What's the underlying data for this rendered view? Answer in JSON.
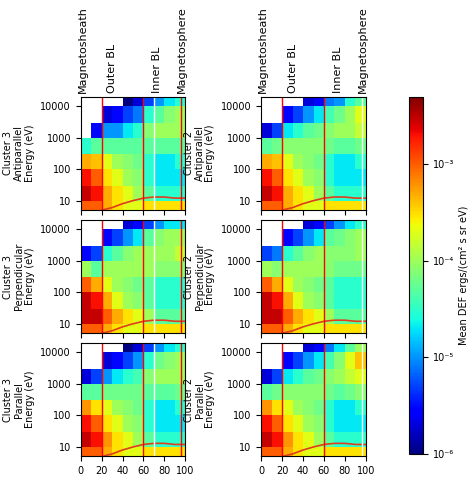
{
  "chart_data": [
    {
      "type": "heatmap",
      "column": 0,
      "row": 0,
      "ylabel": "Cluster 3\nAntiparallel\nEnergy (eV)",
      "xlim": [
        0,
        100
      ],
      "xticks": [
        0,
        20,
        40,
        60,
        80,
        100
      ],
      "ylim": [
        5,
        20000
      ],
      "yticks": [
        10,
        100,
        1000,
        10000
      ],
      "log": "y",
      "tick_labels": "y",
      "x_edges": [
        0,
        10,
        20,
        30,
        40,
        50,
        60,
        70,
        80,
        90,
        100
      ],
      "y_edges": [
        5,
        10,
        30,
        100,
        300,
        1000,
        3000,
        10000,
        20000
      ],
      "cells_by_x": [
        [
          0.001,
          0.003,
          0.002,
          0.0005,
          3e-05,
          null,
          null,
          null
        ],
        [
          0.001,
          0.002,
          0.001,
          0.0004,
          5e-05,
          3e-06,
          null,
          null
        ],
        [
          0.0005,
          0.0005,
          0.0003,
          0.0002,
          5e-05,
          1e-05,
          2e-06,
          null
        ],
        [
          0.0003,
          0.0003,
          0.0002,
          0.0001,
          5e-05,
          1e-05,
          3e-06,
          null
        ],
        [
          0.0002,
          0.0002,
          0.0001,
          8e-05,
          5e-05,
          2e-05,
          5e-06,
          1e-06
        ],
        [
          0.0002,
          0.0001,
          8e-05,
          6e-05,
          5e-05,
          3e-05,
          8e-06,
          2e-06
        ],
        [
          0.0003,
          5e-05,
          3e-05,
          3e-05,
          5e-05,
          8e-05,
          3e-05,
          5e-06
        ],
        [
          0.0003,
          3e-05,
          2e-05,
          2e-05,
          5e-05,
          0.0001,
          5e-05,
          1e-05
        ],
        [
          0.0003,
          3e-05,
          2e-05,
          2e-05,
          5e-05,
          0.0001,
          8e-05,
          2e-05
        ],
        [
          0.0003,
          3e-05,
          2e-05,
          3e-05,
          5e-05,
          0.0001,
          0.0001,
          3e-05
        ]
      ],
      "boundaries": [
        {
          "x": 20,
          "color": "red"
        },
        {
          "x": 60,
          "color": "red"
        },
        {
          "x": 70,
          "color": "white"
        },
        {
          "x": 96,
          "color": "red"
        }
      ],
      "series": [
        {
          "type": "line",
          "color": "#e03c1e",
          "x": [
            20,
            30,
            40,
            50,
            60,
            70,
            80,
            90,
            100
          ],
          "values": [
            5,
            6,
            8,
            10,
            12,
            13,
            13,
            12,
            12
          ]
        }
      ]
    },
    {
      "type": "heatmap",
      "column": 0,
      "row": 1,
      "ylabel": "Cluster 3\nPerpendicular\nEnergy (eV)",
      "xlim": [
        0,
        100
      ],
      "xticks": [
        0,
        20,
        40,
        60,
        80,
        100
      ],
      "ylim": [
        5,
        20000
      ],
      "yticks": [
        10,
        100,
        1000,
        10000
      ],
      "log": "y",
      "tick_labels": "y",
      "x_edges": [
        0,
        10,
        20,
        30,
        40,
        50,
        60,
        70,
        80,
        90,
        100
      ],
      "y_edges": [
        5,
        10,
        30,
        100,
        300,
        1000,
        3000,
        10000,
        20000
      ],
      "cells_by_x": [
        [
          0.001,
          0.003,
          0.003,
          0.001,
          0.0001,
          3e-06,
          null,
          null
        ],
        [
          0.001,
          0.003,
          0.002,
          0.0005,
          5e-05,
          5e-06,
          null,
          null
        ],
        [
          0.0005,
          0.001,
          0.0005,
          0.0002,
          0.0001,
          3e-05,
          3e-06,
          null
        ],
        [
          0.0003,
          0.0005,
          0.0002,
          0.0001,
          0.0001,
          5e-05,
          5e-06,
          null
        ],
        [
          0.0002,
          0.0003,
          0.0001,
          8e-05,
          0.0001,
          8e-05,
          1e-05,
          2e-06
        ],
        [
          0.0002,
          0.0002,
          8e-05,
          6e-05,
          0.0001,
          0.0001,
          2e-05,
          3e-06
        ],
        [
          0.0003,
          0.0001,
          5e-05,
          5e-05,
          0.0001,
          0.0001,
          5e-05,
          5e-06
        ],
        [
          0.0003,
          5e-05,
          3e-05,
          3e-05,
          8e-05,
          0.0001,
          8e-05,
          1e-05
        ],
        [
          0.0003,
          5e-05,
          3e-05,
          3e-05,
          8e-05,
          0.0001,
          0.0001,
          2e-05
        ],
        [
          0.0003,
          5e-05,
          3e-05,
          3e-05,
          8e-05,
          0.00015,
          0.0001,
          2e-05
        ]
      ],
      "boundaries": [
        {
          "x": 20,
          "color": "red"
        },
        {
          "x": 60,
          "color": "red"
        },
        {
          "x": 70,
          "color": "white"
        },
        {
          "x": 96,
          "color": "red"
        }
      ],
      "series": [
        {
          "type": "line",
          "color": "#e03c1e",
          "x": [
            20,
            30,
            40,
            50,
            60,
            70,
            80,
            90,
            100
          ],
          "values": [
            5,
            6,
            8,
            10,
            12,
            13,
            13,
            12,
            12
          ]
        }
      ]
    },
    {
      "type": "heatmap",
      "column": 0,
      "row": 2,
      "ylabel": "Cluster 3\nParallel\nEnergy (eV)",
      "xlim": [
        0,
        100
      ],
      "xticks": [
        0,
        20,
        40,
        60,
        80,
        100
      ],
      "ylim": [
        5,
        20000
      ],
      "yticks": [
        10,
        100,
        1000,
        10000
      ],
      "log": "y",
      "x_edges": [
        0,
        10,
        20,
        30,
        40,
        50,
        60,
        70,
        80,
        90,
        100
      ],
      "y_edges": [
        5,
        10,
        30,
        100,
        300,
        1000,
        3000,
        10000,
        20000
      ],
      "cells_by_x": [
        [
          0.001,
          0.003,
          0.002,
          0.0006,
          5e-05,
          2e-06,
          null,
          null
        ],
        [
          0.001,
          0.002,
          0.001,
          0.0003,
          5e-05,
          5e-06,
          null,
          null
        ],
        [
          0.0005,
          0.0006,
          0.0003,
          0.0002,
          6e-05,
          1e-05,
          2e-06,
          null
        ],
        [
          0.0003,
          0.0003,
          0.0002,
          0.0001,
          6e-05,
          2e-05,
          3e-06,
          null
        ],
        [
          0.0002,
          0.0002,
          0.0001,
          8e-05,
          6e-05,
          3e-05,
          5e-06,
          1e-06
        ],
        [
          0.0002,
          0.0001,
          8e-05,
          6e-05,
          6e-05,
          4e-05,
          1e-05,
          2e-06
        ],
        [
          0.0003,
          5e-05,
          3e-05,
          3e-05,
          5e-05,
          8e-05,
          3e-05,
          5e-06
        ],
        [
          0.0003,
          3e-05,
          2e-05,
          2e-05,
          5e-05,
          0.0001,
          6e-05,
          1e-05
        ],
        [
          0.0003,
          3e-05,
          2e-05,
          2e-05,
          5e-05,
          0.0001,
          8e-05,
          2e-05
        ],
        [
          0.0003,
          3e-05,
          2e-05,
          3e-05,
          6e-05,
          0.0001,
          0.0001,
          3e-05
        ]
      ],
      "boundaries": [
        {
          "x": 20,
          "color": "red"
        },
        {
          "x": 60,
          "color": "red"
        },
        {
          "x": 70,
          "color": "white"
        },
        {
          "x": 96,
          "color": "red"
        }
      ],
      "series": [
        {
          "type": "line",
          "color": "#e03c1e",
          "x": [
            20,
            30,
            40,
            50,
            60,
            70,
            80,
            90,
            100
          ],
          "values": [
            5,
            6,
            8,
            10,
            12,
            13,
            13,
            12,
            12
          ]
        }
      ]
    },
    {
      "type": "heatmap",
      "column": 1,
      "row": 0,
      "ylabel": "Cluster 2\nAntiparallel\nEnergy (eV)",
      "xlim": [
        0,
        100
      ],
      "xticks": [
        0,
        20,
        40,
        60,
        80,
        100
      ],
      "ylim": [
        5,
        20000
      ],
      "yticks": [
        10,
        100,
        1000,
        10000
      ],
      "log": "y",
      "tick_labels": "y",
      "x_edges": [
        0,
        10,
        20,
        30,
        40,
        50,
        60,
        70,
        80,
        90,
        100
      ],
      "y_edges": [
        5,
        10,
        30,
        100,
        300,
        1000,
        3000,
        10000,
        20000
      ],
      "cells_by_x": [
        [
          0.001,
          0.003,
          0.002,
          0.0005,
          5e-05,
          2e-06,
          null,
          null
        ],
        [
          0.001,
          0.002,
          0.001,
          0.0004,
          6e-05,
          5e-06,
          null,
          null
        ],
        [
          0.0005,
          0.0005,
          0.0003,
          0.0002,
          8e-05,
          2e-05,
          3e-06,
          null
        ],
        [
          0.0003,
          0.0003,
          0.0002,
          0.0001,
          8e-05,
          3e-05,
          5e-06,
          null
        ],
        [
          0.0002,
          0.0002,
          0.0001,
          8e-05,
          8e-05,
          5e-05,
          1e-05,
          2e-06
        ],
        [
          0.0002,
          0.0001,
          8e-05,
          6e-05,
          8e-05,
          6e-05,
          2e-05,
          3e-06
        ],
        [
          0.0003,
          5e-05,
          3e-05,
          3e-05,
          6e-05,
          8e-05,
          4e-05,
          8e-06
        ],
        [
          0.0003,
          3e-05,
          2e-05,
          2e-05,
          5e-05,
          0.0001,
          6e-05,
          1e-05
        ],
        [
          0.0003,
          3e-05,
          2e-05,
          2e-05,
          5e-05,
          0.0001,
          0.0001,
          3e-05
        ],
        [
          0.0003,
          3e-05,
          2e-05,
          3e-05,
          6e-05,
          0.00015,
          0.0002,
          5e-05
        ]
      ],
      "boundaries": [
        {
          "x": 20,
          "color": "red"
        },
        {
          "x": 60,
          "color": "red"
        },
        {
          "x": 96,
          "color": "white"
        }
      ],
      "series": [
        {
          "type": "line",
          "color": "#e03c1e",
          "x": [
            20,
            30,
            40,
            50,
            60,
            70,
            80,
            90,
            100
          ],
          "values": [
            5,
            6,
            8,
            10,
            12,
            13,
            13,
            12,
            12
          ]
        }
      ]
    },
    {
      "type": "heatmap",
      "column": 1,
      "row": 1,
      "ylabel": "Cluster 2\nPerpendicular\nEnergy (eV)",
      "xlim": [
        0,
        100
      ],
      "xticks": [
        0,
        20,
        40,
        60,
        80,
        100
      ],
      "ylim": [
        5,
        20000
      ],
      "yticks": [
        10,
        100,
        1000,
        10000
      ],
      "log": "y",
      "tick_labels": "y",
      "x_edges": [
        0,
        10,
        20,
        30,
        40,
        50,
        60,
        70,
        80,
        90,
        100
      ],
      "y_edges": [
        5,
        10,
        30,
        100,
        300,
        1000,
        3000,
        10000,
        20000
      ],
      "cells_by_x": [
        [
          0.001,
          0.003,
          0.003,
          0.001,
          0.0001,
          5e-06,
          null,
          null
        ],
        [
          0.001,
          0.003,
          0.002,
          0.0005,
          8e-05,
          8e-06,
          null,
          null
        ],
        [
          0.0005,
          0.001,
          0.0005,
          0.0002,
          0.0001,
          3e-05,
          3e-06,
          null
        ],
        [
          0.0003,
          0.0005,
          0.0002,
          0.0001,
          0.0001,
          5e-05,
          5e-06,
          null
        ],
        [
          0.0002,
          0.0003,
          0.0001,
          8e-05,
          0.0001,
          8e-05,
          1e-05,
          2e-06
        ],
        [
          0.0002,
          0.0002,
          8e-05,
          6e-05,
          0.0001,
          0.0001,
          2e-05,
          3e-06
        ],
        [
          0.0003,
          0.0001,
          5e-05,
          5e-05,
          8e-05,
          8e-05,
          5e-05,
          5e-06
        ],
        [
          0.0003,
          5e-05,
          3e-05,
          3e-05,
          6e-05,
          8e-05,
          6e-05,
          1e-05
        ],
        [
          0.0003,
          5e-05,
          3e-05,
          3e-05,
          6e-05,
          8e-05,
          8e-05,
          2e-05
        ],
        [
          0.0003,
          5e-05,
          3e-05,
          3e-05,
          6e-05,
          0.0001,
          0.0001,
          3e-05
        ]
      ],
      "boundaries": [
        {
          "x": 20,
          "color": "red"
        },
        {
          "x": 60,
          "color": "red"
        },
        {
          "x": 96,
          "color": "white"
        }
      ],
      "series": [
        {
          "type": "line",
          "color": "#e03c1e",
          "x": [
            20,
            30,
            40,
            50,
            60,
            70,
            80,
            90,
            100
          ],
          "values": [
            5,
            6,
            8,
            10,
            12,
            13,
            13,
            12,
            12
          ]
        }
      ]
    },
    {
      "type": "heatmap",
      "column": 1,
      "row": 2,
      "ylabel": "Cluster 2\nParallel\nEnergy (eV)",
      "xlim": [
        0,
        100
      ],
      "xticks": [
        0,
        20,
        40,
        60,
        80,
        100
      ],
      "ylim": [
        5,
        20000
      ],
      "yticks": [
        10,
        100,
        1000,
        10000
      ],
      "log": "y",
      "x_edges": [
        0,
        10,
        20,
        30,
        40,
        50,
        60,
        70,
        80,
        90,
        100
      ],
      "y_edges": [
        5,
        10,
        30,
        100,
        300,
        1000,
        3000,
        10000,
        20000
      ],
      "cells_by_x": [
        [
          0.001,
          0.003,
          0.002,
          0.0006,
          5e-05,
          2e-06,
          null,
          null
        ],
        [
          0.001,
          0.002,
          0.001,
          0.0003,
          6e-05,
          5e-06,
          null,
          null
        ],
        [
          0.0005,
          0.0006,
          0.0003,
          0.0002,
          8e-05,
          2e-05,
          3e-06,
          null
        ],
        [
          0.0003,
          0.0003,
          0.0002,
          0.0001,
          8e-05,
          3e-05,
          5e-06,
          null
        ],
        [
          0.0002,
          0.0002,
          0.0001,
          8e-05,
          8e-05,
          5e-05,
          1e-05,
          2e-06
        ],
        [
          0.0002,
          0.0001,
          8e-05,
          6e-05,
          8e-05,
          6e-05,
          2e-05,
          3e-06
        ],
        [
          0.0003,
          5e-05,
          3e-05,
          3e-05,
          6e-05,
          8e-05,
          4e-05,
          8e-06
        ],
        [
          0.0003,
          3e-05,
          2e-05,
          2e-05,
          5e-05,
          0.0001,
          8e-05,
          2e-05
        ],
        [
          0.0003,
          3e-05,
          2e-05,
          2e-05,
          6e-05,
          0.00015,
          0.0002,
          5e-05
        ],
        [
          0.0003,
          3e-05,
          2e-05,
          3e-05,
          8e-05,
          0.0002,
          0.0004,
          0.0001
        ]
      ],
      "boundaries": [
        {
          "x": 20,
          "color": "red"
        },
        {
          "x": 60,
          "color": "red"
        },
        {
          "x": 96,
          "color": "white"
        }
      ],
      "series": [
        {
          "type": "line",
          "color": "#e03c1e",
          "x": [
            20,
            30,
            40,
            50,
            60,
            70,
            80,
            90,
            100
          ],
          "values": [
            5,
            6,
            8,
            10,
            12,
            13,
            13,
            12,
            12
          ]
        }
      ]
    }
  ],
  "regions": [
    {
      "label": "Magnetosheath",
      "x": 2
    },
    {
      "label": "Outer BL",
      "x": 30
    },
    {
      "label": "Inner BL",
      "x": 73
    },
    {
      "label": "Magnetosphere",
      "x": 97
    }
  ],
  "colorbar": {
    "label": "Mean DEF ergs/(cm² s sr eV)",
    "lim": [
      1e-06,
      0.005
    ],
    "ticks": [
      {
        "value": 1e-06,
        "label": "10⁻⁶"
      },
      {
        "value": 1e-05,
        "label": "10⁻⁵"
      },
      {
        "value": 0.0001,
        "label": "10⁻⁴"
      },
      {
        "value": 0.001,
        "label": "10⁻³"
      }
    ]
  }
}
